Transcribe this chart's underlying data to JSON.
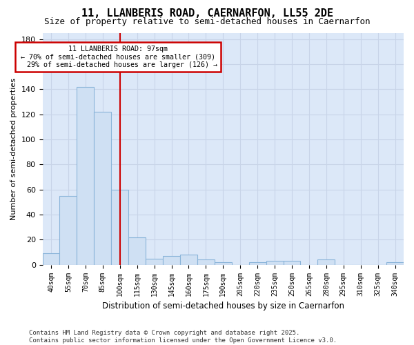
{
  "title": "11, LLANBERIS ROAD, CAERNARFON, LL55 2DE",
  "subtitle": "Size of property relative to semi-detached houses in Caernarfon",
  "xlabel": "Distribution of semi-detached houses by size in Caernarfon",
  "ylabel": "Number of semi-detached properties",
  "categories": [
    "40sqm",
    "55sqm",
    "70sqm",
    "85sqm",
    "100sqm",
    "115sqm",
    "130sqm",
    "145sqm",
    "160sqm",
    "175sqm",
    "190sqm",
    "205sqm",
    "220sqm",
    "235sqm",
    "250sqm",
    "265sqm",
    "280sqm",
    "295sqm",
    "310sqm",
    "325sqm",
    "340sqm"
  ],
  "values": [
    9,
    55,
    142,
    122,
    60,
    22,
    5,
    7,
    8,
    4,
    2,
    0,
    2,
    3,
    3,
    0,
    4,
    0,
    0,
    0,
    2
  ],
  "bar_color": "#cfe0f3",
  "bar_edge_color": "#8ab4d9",
  "property_label": "11 LLANBERIS ROAD: 97sqm",
  "pct_smaller": 70,
  "count_smaller": 309,
  "pct_larger": 29,
  "count_larger": 126,
  "vline_color": "#cc0000",
  "vline_x_index": 4.0,
  "ylim": [
    0,
    185
  ],
  "yticks": [
    0,
    20,
    40,
    60,
    80,
    100,
    120,
    140,
    160,
    180
  ],
  "grid_color": "#c8d4e8",
  "bg_color": "#dce8f8",
  "fig_bg_color": "#ffffff",
  "footer_line1": "Contains HM Land Registry data © Crown copyright and database right 2025.",
  "footer_line2": "Contains public sector information licensed under the Open Government Licence v3.0."
}
